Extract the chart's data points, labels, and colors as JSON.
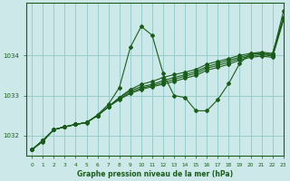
{
  "title": "Graphe pression niveau de la mer (hPa)",
  "bg_color": "#cce8e8",
  "grid_color": "#99cccc",
  "line_color": "#1a5c1a",
  "xlim": [
    -0.5,
    23
  ],
  "ylim": [
    1031.5,
    1035.3
  ],
  "yticks": [
    1032,
    1033,
    1034
  ],
  "xticks": [
    0,
    1,
    2,
    3,
    4,
    5,
    6,
    7,
    8,
    9,
    10,
    11,
    12,
    13,
    14,
    15,
    16,
    17,
    18,
    19,
    20,
    21,
    22,
    23
  ],
  "lines": [
    [
      1031.65,
      1031.85,
      1032.15,
      1032.22,
      1032.28,
      1032.32,
      1032.52,
      1032.78,
      1033.2,
      1034.2,
      1034.72,
      1034.5,
      1033.55,
      1033.0,
      1032.95,
      1032.62,
      1032.62,
      1032.9,
      1033.3,
      1033.8,
      1034.05,
      1034.05,
      1034.0,
      1035.1
    ],
    [
      1031.65,
      1031.88,
      1032.15,
      1032.22,
      1032.28,
      1032.33,
      1032.5,
      1032.72,
      1032.95,
      1033.15,
      1033.28,
      1033.35,
      1033.45,
      1033.52,
      1033.58,
      1033.65,
      1033.78,
      1033.85,
      1033.92,
      1034.0,
      1034.05,
      1034.08,
      1034.05,
      1034.95
    ],
    [
      1031.65,
      1031.88,
      1032.15,
      1032.22,
      1032.28,
      1032.33,
      1032.5,
      1032.72,
      1032.95,
      1033.12,
      1033.22,
      1033.28,
      1033.37,
      1033.45,
      1033.52,
      1033.6,
      1033.72,
      1033.8,
      1033.88,
      1033.95,
      1034.02,
      1034.05,
      1034.02,
      1034.92
    ],
    [
      1031.65,
      1031.88,
      1032.15,
      1032.22,
      1032.28,
      1032.33,
      1032.5,
      1032.72,
      1032.92,
      1033.08,
      1033.18,
      1033.25,
      1033.32,
      1033.4,
      1033.48,
      1033.55,
      1033.68,
      1033.75,
      1033.83,
      1033.92,
      1033.98,
      1034.02,
      1033.98,
      1034.9
    ],
    [
      1031.65,
      1031.88,
      1032.15,
      1032.22,
      1032.28,
      1032.33,
      1032.5,
      1032.72,
      1032.9,
      1033.05,
      1033.15,
      1033.22,
      1033.28,
      1033.35,
      1033.43,
      1033.5,
      1033.63,
      1033.7,
      1033.78,
      1033.88,
      1033.95,
      1033.98,
      1033.95,
      1034.88
    ]
  ]
}
